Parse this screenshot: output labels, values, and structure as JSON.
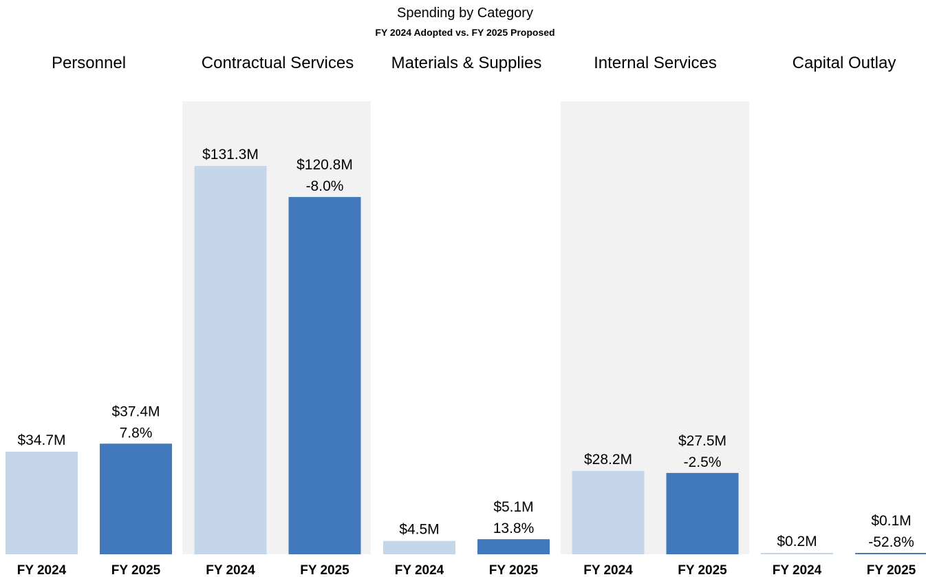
{
  "chart_data": {
    "type": "bar",
    "title": "Spending by Category",
    "subtitle": "FY 2024 Adopted vs. FY 2025 Proposed",
    "categories": [
      "Personnel",
      "Contractual Services",
      "Materials & Supplies",
      "Internal Services",
      "Capital Outlay"
    ],
    "x_tick_labels": [
      "FY 2024",
      "FY 2025"
    ],
    "series": [
      {
        "name": "FY 2024",
        "values": [
          34.7,
          131.3,
          4.5,
          28.2,
          0.2
        ],
        "labels": [
          "$34.7M",
          "$131.3M",
          "$4.5M",
          "$28.2M",
          "$0.2M"
        ]
      },
      {
        "name": "FY 2025",
        "values": [
          37.4,
          120.8,
          5.1,
          27.5,
          0.1
        ],
        "labels": [
          "$37.4M",
          "$120.8M",
          "$5.1M",
          "$27.5M",
          "$0.1M"
        ],
        "change_labels": [
          "7.8%",
          "-8.0%",
          "13.8%",
          "-2.5%",
          "-52.8%"
        ]
      }
    ],
    "unit": "$M",
    "ylim": [
      0,
      170
    ],
    "grid": false,
    "legend": "none",
    "shaded_groups": [
      "Contractual Services",
      "Internal Services"
    ],
    "colors": {
      "fy2024": "#c5d5ea",
      "fy2025": "#4279bc",
      "group_shade": "#f2f2f2",
      "text": "#000000"
    }
  }
}
